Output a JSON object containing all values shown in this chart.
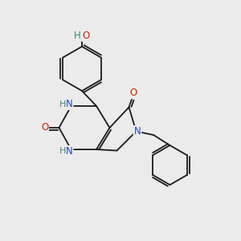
{
  "bg_color": "#ebebeb",
  "bond_color": "#1a1a1a",
  "N_color": "#2244cc",
  "O_color": "#cc2200",
  "H_color": "#338877",
  "font_size_atom": 8.5,
  "lw": 1.3,
  "xlim": [
    0,
    10
  ],
  "ylim": [
    0,
    10
  ]
}
